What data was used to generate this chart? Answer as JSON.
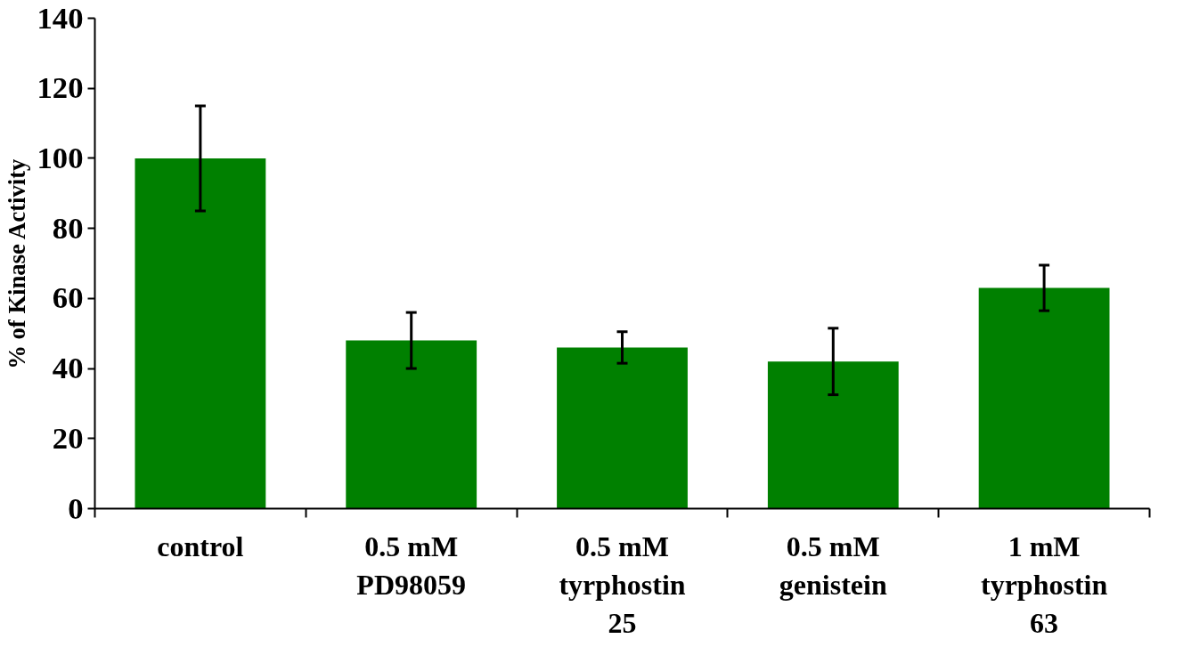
{
  "chart_data": {
    "type": "bar",
    "ylabel": "% of Kinase Activity",
    "categories": [
      "control",
      "0.5 mM\nPD98059",
      "0.5 mM\ntyrphostin\n25",
      "0.5 mM\ngenistein",
      "1 mM\ntyrphostin\n63"
    ],
    "values": [
      100,
      48,
      46,
      42,
      63
    ],
    "errors": [
      15,
      8,
      4.5,
      9.5,
      6.5
    ],
    "color": "#008000",
    "ylim": [
      0,
      140
    ],
    "yticks": [
      0,
      20,
      40,
      60,
      80,
      100,
      120,
      140
    ],
    "grid": false
  }
}
